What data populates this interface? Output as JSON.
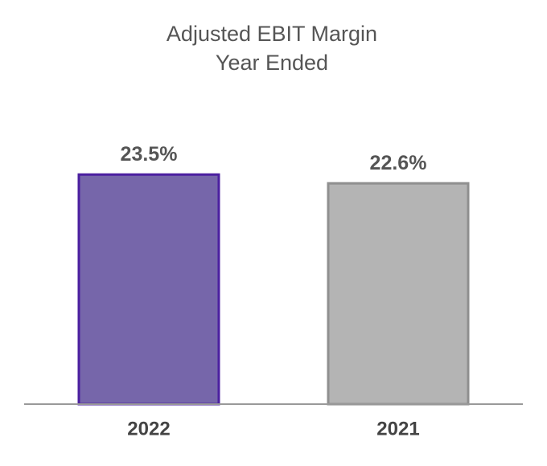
{
  "chart_data": {
    "type": "bar",
    "title": "Adjusted EBIT Margin",
    "subtitle": "Year Ended",
    "categories": [
      "2022",
      "2021"
    ],
    "values": [
      23.5,
      22.6
    ],
    "value_labels": [
      "23.5%",
      "22.6%"
    ],
    "colors": [
      "#7666aa",
      "#b4b4b4"
    ],
    "edge_colors": [
      "#4b1fa0",
      "#8f8f8f"
    ],
    "ylim": [
      0,
      25
    ]
  }
}
